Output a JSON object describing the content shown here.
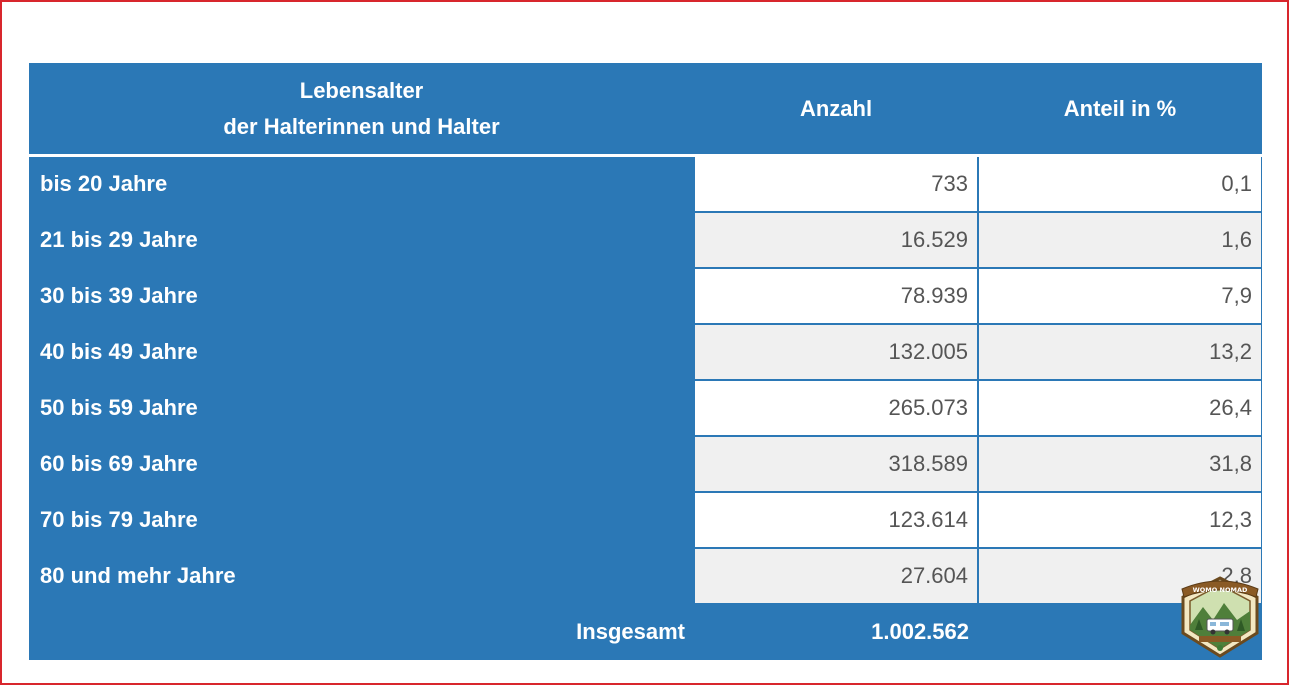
{
  "table": {
    "header": {
      "age_line1": "Lebensalter",
      "age_line2": "der Halterinnen und Halter",
      "count": "Anzahl",
      "share": "Anteil in %"
    },
    "rows": [
      {
        "age": "bis 20 Jahre",
        "count": "733",
        "share": "0,1"
      },
      {
        "age": "21 bis 29 Jahre",
        "count": "16.529",
        "share": "1,6"
      },
      {
        "age": "30 bis 39 Jahre",
        "count": "78.939",
        "share": "7,9"
      },
      {
        "age": "40 bis 49 Jahre",
        "count": "132.005",
        "share": "13,2"
      },
      {
        "age": "50 bis 59 Jahre",
        "count": "265.073",
        "share": "26,4"
      },
      {
        "age": "60 bis 69 Jahre",
        "count": "318.589",
        "share": "31,8"
      },
      {
        "age": "70 bis 79 Jahre",
        "count": "123.614",
        "share": "12,3"
      },
      {
        "age": "80 und mehr Jahre",
        "count": "27.604",
        "share": "2,8"
      }
    ],
    "total": {
      "label": "Insgesamt",
      "count": "1.002.562"
    }
  },
  "logo": {
    "name": "womo-nomad-badge-logo",
    "text": "WOMO NOMAD"
  },
  "colors": {
    "header_blue": "#2b78b6",
    "frame_red": "#d8262d",
    "stripe_gray": "#f0f0f0"
  }
}
